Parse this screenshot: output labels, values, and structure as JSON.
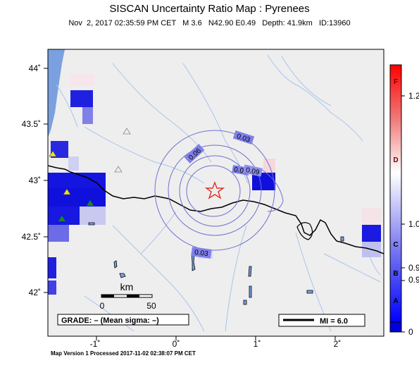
{
  "title": "SISCAN Uncertainty Ratio Map : Pyrenees",
  "subtitle": "Nov  2, 2017 02:35:59 PM CET   M 3.6   N42.90 E0.49   Depth: 41.9km   ID:13960",
  "footer": "Map Version 1 Processed 2017-11-02 02:38:07 PM CET",
  "x_ticks": [
    "-1˚",
    "0˚",
    "1˚",
    "2˚"
  ],
  "y_ticks": [
    "44˚",
    "43.5˚",
    "43˚",
    "42.5˚",
    "42˚"
  ],
  "scale_bar": {
    "unit": "km",
    "start": "0",
    "end": "50"
  },
  "grade_box": "GRADE: – (Mean sigma: –)",
  "mi_legend": "MI = 6.0",
  "contour_labels": [
    "0.03",
    "0.06",
    "0.06",
    "0.09",
    "0.03"
  ],
  "colorbar": {
    "numbers": [
      "1.2",
      "1.0",
      "0.9",
      "0.9",
      "0"
    ],
    "grades": [
      "F",
      "D",
      "C",
      "B",
      "A"
    ],
    "colors": {
      "high": "#ff0000",
      "mid": "#ffffff",
      "low": "#0000ff"
    }
  },
  "epicenter": {
    "lat": 42.9,
    "lon": 0.49,
    "icon": "star-icon",
    "color": "#e03020"
  },
  "colors": {
    "land": "#eeeeee",
    "sea": "#7aa0e0",
    "rivers": "#a8c4ec",
    "contours": "#7070d0",
    "stations_green": "#1a8a1a",
    "stations_yellow": "#f0e020"
  }
}
